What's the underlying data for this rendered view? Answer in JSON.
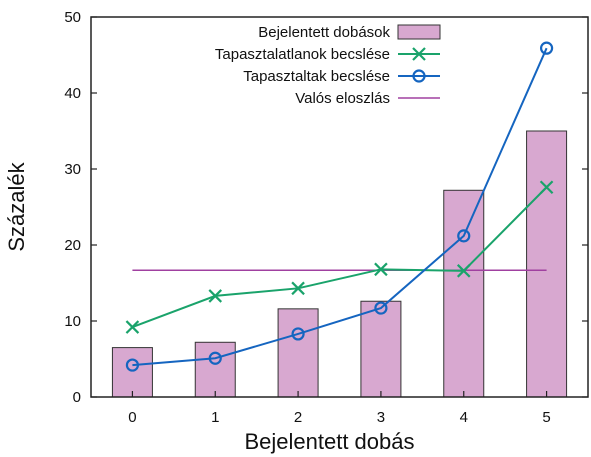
{
  "chart_data": {
    "type": "bar",
    "xlabel": "Bejelentett dobás",
    "ylabel": "Százalék",
    "categories": [
      "0",
      "1",
      "2",
      "3",
      "4",
      "5"
    ],
    "ylim": [
      0,
      50
    ],
    "yticks": [
      "0",
      "10",
      "20",
      "30",
      "40",
      "50"
    ],
    "grid": false,
    "legend_position": "top-right",
    "series": [
      {
        "name": "Bejelentett dobások",
        "type": "bar",
        "color": "#d8a8d0",
        "values": [
          6.5,
          7.2,
          11.6,
          12.6,
          27.2,
          35.0
        ]
      },
      {
        "name": "Tapasztalatlanok becslése",
        "type": "line",
        "marker": "x",
        "color": "#1aa36b",
        "values": [
          9.2,
          13.3,
          14.3,
          16.8,
          16.6,
          27.6
        ]
      },
      {
        "name": "Tapasztaltak becslése",
        "type": "line",
        "marker": "circle",
        "color": "#1565c0",
        "values": [
          4.2,
          5.1,
          8.3,
          11.7,
          21.2,
          45.9
        ]
      },
      {
        "name": "Valós eloszlás",
        "type": "hline",
        "color": "#a040a0",
        "value": 16.67
      }
    ]
  }
}
